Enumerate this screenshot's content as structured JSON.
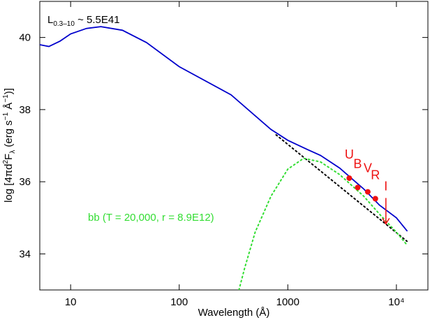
{
  "chart_data": {
    "type": "line",
    "log_x": true,
    "x_label": "Wavelength (Å)",
    "y_label_parts": [
      "log [4πd",
      "2",
      "F",
      "λ",
      " (erg s",
      "−1",
      " Å",
      "−1",
      ")]"
    ],
    "annotations": [
      {
        "parts": [
          "L",
          "0.3–10",
          " ~ 5.5E41"
        ],
        "color": "#000000"
      },
      {
        "parts": [
          "bb (T = 20,000, r = 8.9E12)"
        ],
        "color": "#33dd33"
      }
    ],
    "xlim": [
      5.2,
      19500
    ],
    "ylim": [
      33,
      41
    ],
    "xticks": [
      10,
      100,
      1000,
      {
        "value": 10000,
        "label": "10⁴"
      }
    ],
    "yticks": [
      34,
      36,
      38,
      40
    ],
    "series": [
      {
        "style": "solid",
        "color": "#0000cc",
        "x": [
          5.2,
          6.3,
          8,
          10,
          14,
          19,
          30,
          50,
          100,
          300,
          700,
          1000,
          1500,
          2000,
          3000,
          5000,
          7000,
          10000,
          12500
        ],
        "values": [
          39.8,
          39.75,
          39.9,
          40.1,
          40.25,
          40.3,
          40.2,
          39.86,
          39.19,
          38.41,
          37.45,
          37.15,
          36.9,
          36.73,
          36.38,
          35.8,
          35.35,
          35.0,
          34.64
        ]
      },
      {
        "style": "dotted",
        "color": "#000000",
        "x": [
          780,
          12500
        ],
        "values": [
          37.3,
          34.35
        ]
      },
      {
        "style": "dotted",
        "color": "#33dd33",
        "x": [
          355,
          400,
          500,
          700,
          1000,
          1400,
          2000,
          3000,
          5000,
          7000,
          10000,
          12500
        ],
        "values": [
          33,
          33.6,
          34.6,
          35.6,
          36.35,
          36.65,
          36.55,
          36.2,
          35.6,
          35.1,
          34.6,
          34.25
        ]
      },
      {
        "style": "points",
        "color": "#ee1111",
        "labels": [
          "U",
          "B",
          "V",
          "R",
          "I"
        ],
        "upper_limit": [
          false,
          false,
          false,
          false,
          true
        ],
        "x": [
          3680,
          4400,
          5450,
          6400,
          8000
        ],
        "values": [
          36.1,
          35.84,
          35.72,
          35.53,
          35.55
        ]
      }
    ]
  }
}
